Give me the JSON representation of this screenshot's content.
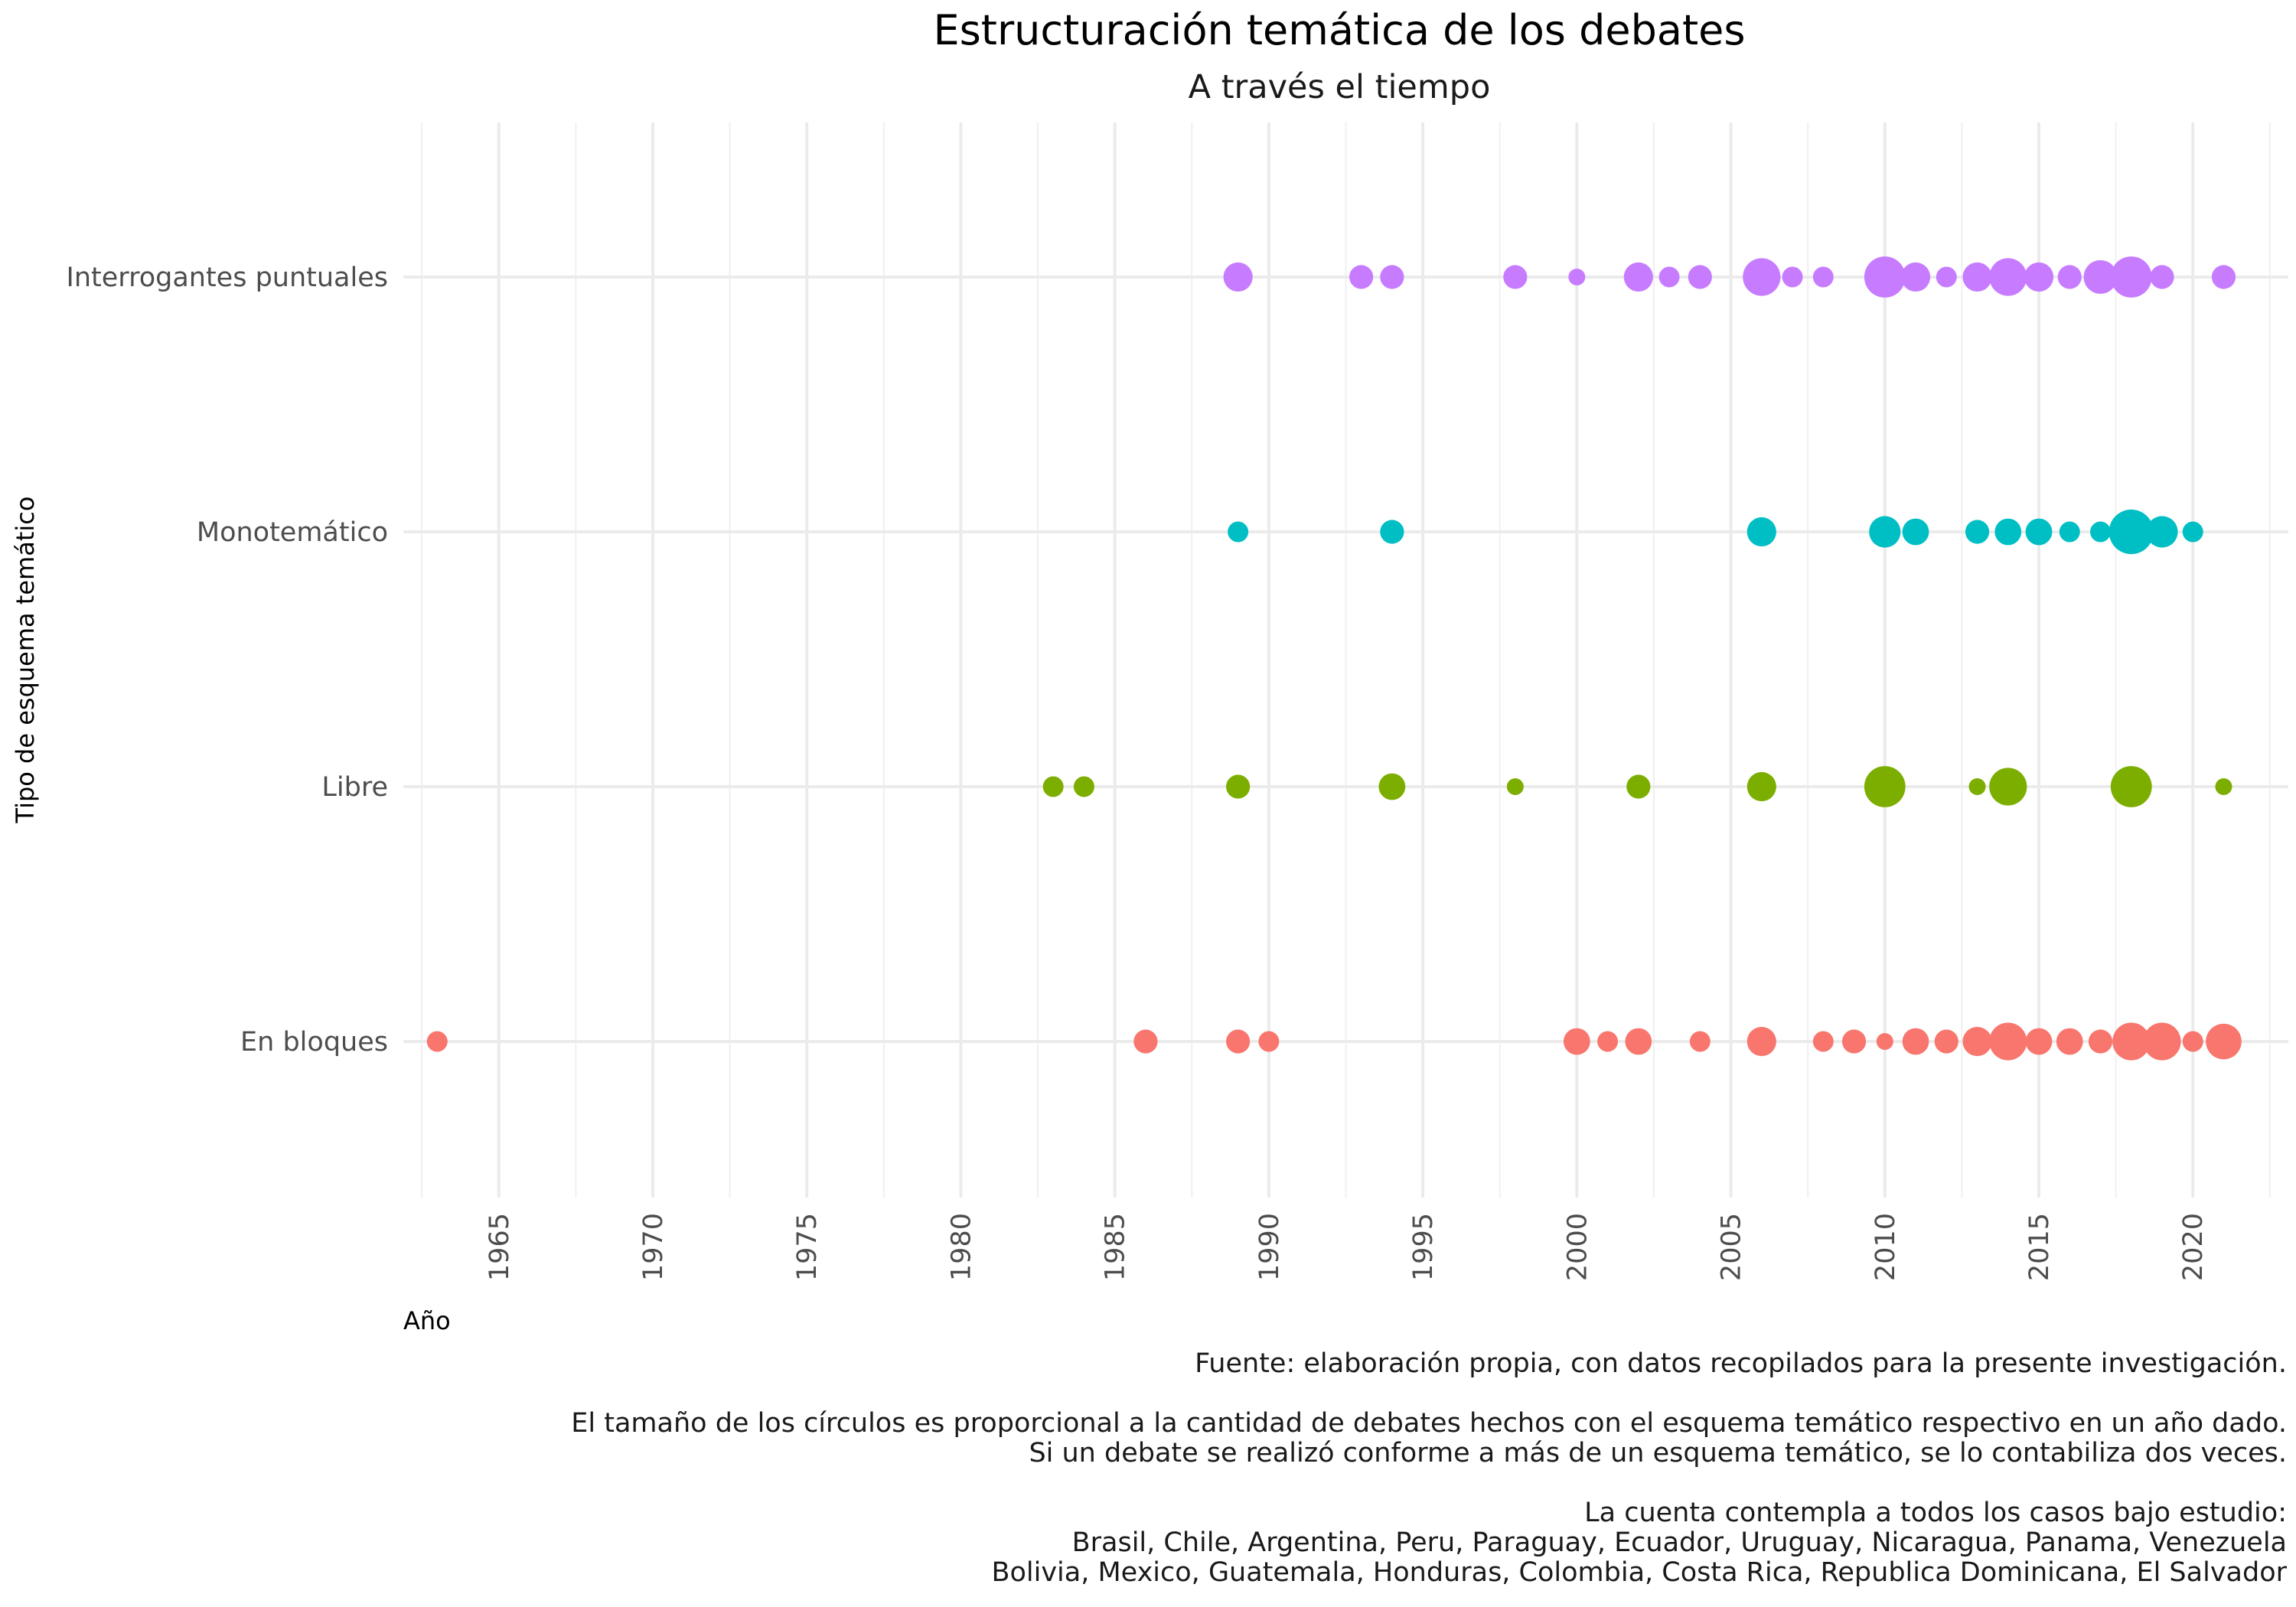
{
  "chart_data": {
    "type": "scatter",
    "title": "Estructuración temática de los debates",
    "subtitle": "A través el tiempo",
    "xlabel": "Año",
    "ylabel": "Tipo de esquema temático",
    "xlim": [
      1961.9,
      2023.1
    ],
    "x_ticks": [
      "1965",
      "1970",
      "1975",
      "1980",
      "1985",
      "1990",
      "1995",
      "2000",
      "2005",
      "2010",
      "2015",
      "2020"
    ],
    "categories": [
      "Interrogantes puntuales",
      "Monotemático",
      "Libre",
      "En bloques"
    ],
    "grid": true,
    "legend": "none",
    "size_encoding": "cantidad de debates por año",
    "series": [
      {
        "category": "Interrogantes puntuales",
        "color": "#C77CFF",
        "points": [
          {
            "x": 1989,
            "n": 3
          },
          {
            "x": 1993,
            "n": 2
          },
          {
            "x": 1994,
            "n": 2
          },
          {
            "x": 1998,
            "n": 2
          },
          {
            "x": 2000,
            "n": 1
          },
          {
            "x": 2002,
            "n": 3
          },
          {
            "x": 2003,
            "n": 1.5
          },
          {
            "x": 2004,
            "n": 2
          },
          {
            "x": 2006,
            "n": 5
          },
          {
            "x": 2007,
            "n": 1.5
          },
          {
            "x": 2008,
            "n": 1.5
          },
          {
            "x": 2010,
            "n": 6
          },
          {
            "x": 2011,
            "n": 3
          },
          {
            "x": 2012,
            "n": 1.5
          },
          {
            "x": 2013,
            "n": 3
          },
          {
            "x": 2014,
            "n": 5
          },
          {
            "x": 2015,
            "n": 3
          },
          {
            "x": 2016,
            "n": 2
          },
          {
            "x": 2017,
            "n": 4
          },
          {
            "x": 2018,
            "n": 6
          },
          {
            "x": 2019,
            "n": 2
          },
          {
            "x": 2021,
            "n": 2
          }
        ]
      },
      {
        "category": "Monotemático",
        "color": "#00BFC4",
        "points": [
          {
            "x": 1989,
            "n": 1.5
          },
          {
            "x": 1994,
            "n": 2
          },
          {
            "x": 2006,
            "n": 3
          },
          {
            "x": 2010,
            "n": 3.5
          },
          {
            "x": 2011,
            "n": 2.5
          },
          {
            "x": 2013,
            "n": 2
          },
          {
            "x": 2014,
            "n": 2.5
          },
          {
            "x": 2015,
            "n": 2.5
          },
          {
            "x": 2016,
            "n": 1.5
          },
          {
            "x": 2017,
            "n": 1.5
          },
          {
            "x": 2018,
            "n": 7
          },
          {
            "x": 2019,
            "n": 3.5
          },
          {
            "x": 2020,
            "n": 1.5
          }
        ]
      },
      {
        "category": "Libre",
        "color": "#7CAE00",
        "points": [
          {
            "x": 1983,
            "n": 1.5
          },
          {
            "x": 1984,
            "n": 1.5
          },
          {
            "x": 1989,
            "n": 2
          },
          {
            "x": 1994,
            "n": 2.5
          },
          {
            "x": 1998,
            "n": 1
          },
          {
            "x": 2002,
            "n": 2
          },
          {
            "x": 2006,
            "n": 3
          },
          {
            "x": 2010,
            "n": 6
          },
          {
            "x": 2013,
            "n": 1
          },
          {
            "x": 2014,
            "n": 5
          },
          {
            "x": 2018,
            "n": 6
          },
          {
            "x": 2021,
            "n": 1
          }
        ]
      },
      {
        "category": "En bloques",
        "color": "#F8766D",
        "points": [
          {
            "x": 1963,
            "n": 1.5
          },
          {
            "x": 1986,
            "n": 2
          },
          {
            "x": 1989,
            "n": 2
          },
          {
            "x": 1990,
            "n": 1.5
          },
          {
            "x": 2000,
            "n": 2.5
          },
          {
            "x": 2001,
            "n": 1.5
          },
          {
            "x": 2002,
            "n": 2.5
          },
          {
            "x": 2004,
            "n": 1.5
          },
          {
            "x": 2006,
            "n": 3
          },
          {
            "x": 2008,
            "n": 1.5
          },
          {
            "x": 2009,
            "n": 2
          },
          {
            "x": 2010,
            "n": 1
          },
          {
            "x": 2011,
            "n": 2.5
          },
          {
            "x": 2012,
            "n": 2
          },
          {
            "x": 2013,
            "n": 3
          },
          {
            "x": 2014,
            "n": 5
          },
          {
            "x": 2015,
            "n": 2.5
          },
          {
            "x": 2016,
            "n": 2.5
          },
          {
            "x": 2017,
            "n": 2
          },
          {
            "x": 2018,
            "n": 5
          },
          {
            "x": 2019,
            "n": 5
          },
          {
            "x": 2020,
            "n": 1.5
          },
          {
            "x": 2021,
            "n": 4.5
          }
        ]
      }
    ],
    "caption": [
      "Fuente: elaboración propia, con datos recopilados para la presente investigación.",
      "",
      "El tamaño de los círculos es proporcional a la cantidad de debates hechos con el esquema temático respectivo en un año dado.",
      "Si un debate se realizó conforme a más de un esquema temático, se lo contabiliza dos veces.",
      "",
      "La cuenta contempla a todos los casos bajo estudio:",
      "Brasil, Chile, Argentina, Peru, Paraguay, Ecuador, Uruguay, Nicaragua, Panama, Venezuela",
      "Bolivia, Mexico, Guatemala, Honduras, Colombia, Costa Rica, Republica Dominicana, El Salvador"
    ]
  }
}
